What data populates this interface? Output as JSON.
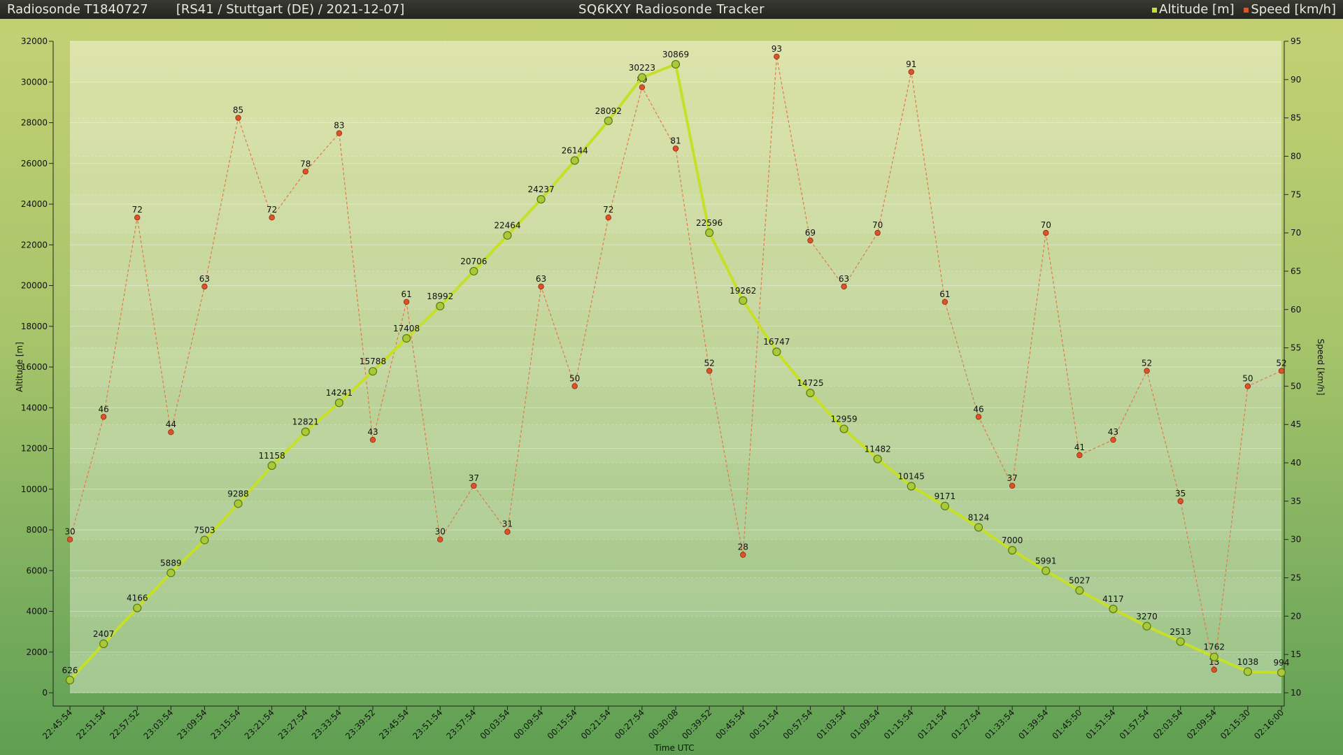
{
  "header": {
    "title": "Radiosonde T1840727",
    "subtitle": "[RS41 / Stuttgart (DE) / 2021-12-07]",
    "center_title": "SQ6KXY Radiosonde Tracker"
  },
  "chart_data": {
    "type": "line",
    "xlabel": "Time UTC",
    "ylabel": "Altitude [m]",
    "ylabel_right": "Speed [km/h]",
    "ylim": [
      0,
      32000
    ],
    "ylim_right": [
      10,
      95
    ],
    "y_ticks": [
      0,
      2000,
      4000,
      6000,
      8000,
      10000,
      12000,
      14000,
      16000,
      18000,
      20000,
      22000,
      24000,
      26000,
      28000,
      30000,
      32000
    ],
    "y_ticks_right": [
      10,
      15,
      20,
      25,
      30,
      35,
      40,
      45,
      50,
      55,
      60,
      65,
      70,
      75,
      80,
      85,
      90,
      95
    ],
    "grid": true,
    "legend_position": "top-right",
    "x": [
      "22:45:54",
      "22:51:54",
      "22:57:52",
      "23:03:54",
      "23:09:54",
      "23:15:54",
      "23:21:54",
      "23:27:54",
      "23:33:54",
      "23:39:52",
      "23:45:54",
      "23:51:54",
      "23:57:54",
      "00:03:54",
      "00:09:54",
      "00:15:54",
      "00:21:54",
      "00:27:54",
      "00:30:08",
      "00:39:52",
      "00:45:54",
      "00:51:54",
      "00:57:54",
      "01:03:54",
      "01:09:54",
      "01:15:54",
      "01:21:54",
      "01:27:54",
      "01:33:54",
      "01:39:54",
      "01:45:50",
      "01:51:54",
      "01:57:54",
      "02:03:54",
      "02:09:54",
      "02:15:30",
      "02:16:00"
    ],
    "series": [
      {
        "name": "Altitude [m]",
        "axis": "left",
        "color": "#c6e02a",
        "values": [
          626,
          2407,
          4166,
          5889,
          7503,
          9288,
          11158,
          12821,
          14241,
          15788,
          17408,
          18992,
          20706,
          22464,
          24237,
          26144,
          28092,
          30223,
          30869,
          22596,
          19262,
          16747,
          14725,
          12959,
          11482,
          10145,
          9171,
          8124,
          7000,
          5991,
          5027,
          4117,
          3270,
          2513,
          1762,
          1038,
          994
        ]
      },
      {
        "name": "Speed [km/h]",
        "axis": "right",
        "color": "#e0512a",
        "values": [
          30,
          46,
          72,
          44,
          63,
          85,
          72,
          78,
          83,
          43,
          61,
          30,
          37,
          31,
          63,
          50,
          72,
          89,
          81,
          52,
          28,
          93,
          69,
          63,
          70,
          91,
          61,
          46,
          37,
          70,
          41,
          43,
          52,
          35,
          13,
          50,
          52
        ]
      }
    ]
  }
}
